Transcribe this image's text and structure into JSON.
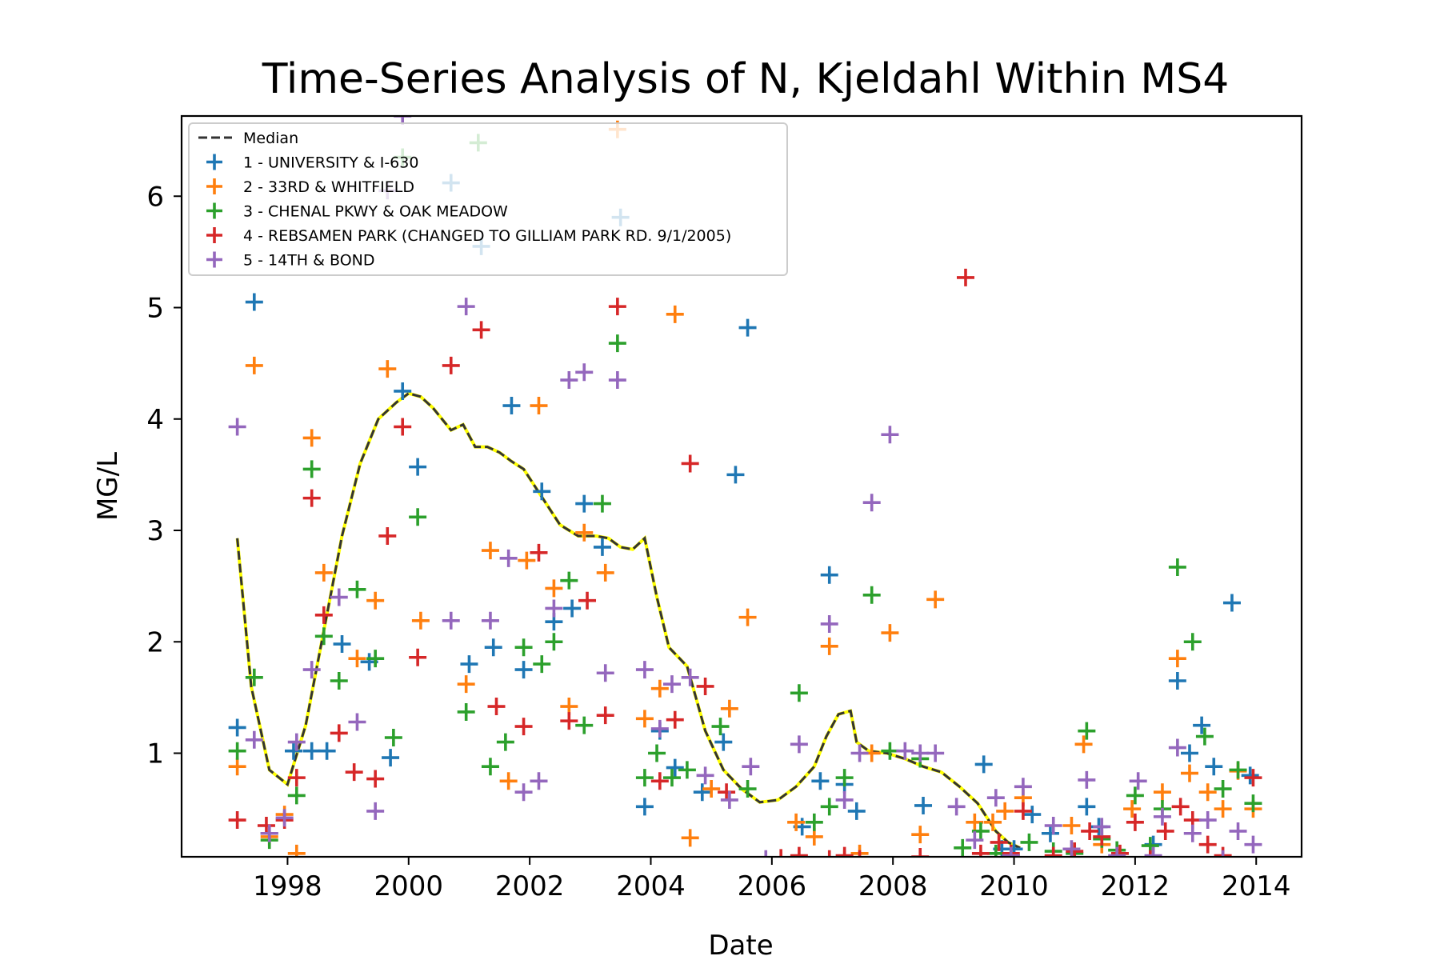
{
  "chart_data": {
    "type": "scatter",
    "title": "Time-Series Analysis of N, Kjeldahl Within MS4",
    "xlabel": "Date",
    "ylabel": "MG/L",
    "xlim": [
      1996.25,
      2014.75
    ],
    "ylim": [
      0.07,
      6.72
    ],
    "x_ticks": [
      1998,
      2000,
      2002,
      2004,
      2006,
      2008,
      2010,
      2012,
      2014
    ],
    "x_tick_labels": [
      "1998",
      "2000",
      "2002",
      "2004",
      "2006",
      "2008",
      "2010",
      "2012",
      "2014"
    ],
    "y_ticks": [
      1,
      2,
      3,
      4,
      5,
      6
    ],
    "y_tick_labels": [
      "1",
      "2",
      "3",
      "4",
      "5",
      "6"
    ],
    "grid": false,
    "legend_position": "top-left",
    "median": {
      "name": "Median",
      "color": "#333333",
      "highlight_color": "#ffff00",
      "x": [
        1997.17,
        1997.4,
        1997.7,
        1998.0,
        1998.3,
        1998.6,
        1998.9,
        1999.2,
        1999.5,
        1999.8,
        2000.0,
        2000.2,
        2000.4,
        2000.7,
        2000.9,
        2001.1,
        2001.3,
        2001.5,
        2001.7,
        2001.9,
        2002.2,
        2002.5,
        2002.8,
        2003.1,
        2003.3,
        2003.5,
        2003.7,
        2003.9,
        2004.1,
        2004.3,
        2004.6,
        2004.9,
        2005.2,
        2005.5,
        2005.8,
        2006.1,
        2006.4,
        2006.7,
        2006.9,
        2007.1,
        2007.3,
        2007.4,
        2007.6,
        2007.9,
        2008.2,
        2008.5,
        2008.8,
        2009.1,
        2009.4,
        2009.7,
        2009.9,
        2010.1
      ],
      "y": [
        2.93,
        1.6,
        0.85,
        0.72,
        1.25,
        2.1,
        2.95,
        3.6,
        4.0,
        4.15,
        4.23,
        4.2,
        4.1,
        3.9,
        3.95,
        3.75,
        3.75,
        3.7,
        3.62,
        3.55,
        3.3,
        3.05,
        2.95,
        2.95,
        2.93,
        2.85,
        2.83,
        2.93,
        2.4,
        1.95,
        1.78,
        1.2,
        0.85,
        0.68,
        0.56,
        0.58,
        0.7,
        0.88,
        1.15,
        1.35,
        1.38,
        1.1,
        1.02,
        1.0,
        0.95,
        0.88,
        0.83,
        0.7,
        0.55,
        0.3,
        0.2,
        0.15
      ]
    },
    "series": [
      {
        "name": "1 - UNIVERSITY & I-630",
        "color": "#1f77b4",
        "x": [
          1997.17,
          1997.45,
          1997.7,
          1998.1,
          1998.4,
          1998.65,
          1998.9,
          1999.35,
          1999.7,
          1999.9,
          2000.15,
          2000.7,
          2001.0,
          2001.2,
          2001.4,
          2001.7,
          2001.9,
          2002.2,
          2002.4,
          2002.7,
          2002.9,
          2003.2,
          2003.5,
          2003.9,
          2004.15,
          2004.4,
          2004.85,
          2005.2,
          2005.4,
          2005.6,
          2006.5,
          2006.8,
          2006.95,
          2007.2,
          2007.4,
          2008.5,
          2009.5,
          2009.8,
          2010.0,
          2010.3,
          2010.6,
          2011.2,
          2011.4,
          2012.3,
          2012.7,
          2012.9,
          2013.1,
          2013.3,
          2013.6,
          2013.9
        ],
        "y": [
          1.23,
          5.05,
          0.28,
          1.02,
          1.02,
          1.02,
          1.98,
          1.82,
          0.96,
          4.25,
          3.57,
          6.12,
          1.8,
          5.55,
          1.95,
          4.12,
          1.75,
          3.35,
          2.18,
          2.3,
          3.24,
          2.85,
          5.81,
          0.52,
          1.2,
          0.87,
          0.65,
          1.1,
          3.5,
          4.82,
          0.34,
          0.75,
          2.6,
          0.72,
          0.48,
          0.53,
          0.9,
          0.14,
          0.14,
          0.45,
          0.28,
          0.52,
          0.34,
          0.18,
          1.65,
          1.0,
          1.25,
          0.88,
          2.35,
          0.8
        ]
      },
      {
        "name": "2 - 33RD & WHITFIELD",
        "color": "#ff7f0e",
        "x": [
          1997.17,
          1997.45,
          1997.7,
          1997.95,
          1998.15,
          1998.4,
          1998.6,
          1999.15,
          1999.45,
          1999.65,
          2000.2,
          2000.95,
          2001.35,
          2001.65,
          2001.95,
          2002.15,
          2002.4,
          2002.65,
          2002.9,
          2003.25,
          2003.45,
          2003.9,
          2004.15,
          2004.4,
          2004.65,
          2005.0,
          2005.3,
          2005.6,
          2006.4,
          2006.7,
          2006.95,
          2007.2,
          2007.45,
          2007.65,
          2007.95,
          2008.45,
          2008.7,
          2009.35,
          2009.65,
          2009.85,
          2010.15,
          2010.95,
          2011.15,
          2011.45,
          2011.95,
          2012.45,
          2012.7,
          2012.9,
          2013.2,
          2013.45,
          2013.7,
          2013.95
        ],
        "y": [
          0.88,
          4.48,
          0.25,
          0.45,
          0.1,
          3.83,
          2.62,
          1.85,
          2.37,
          4.45,
          2.19,
          1.62,
          2.82,
          0.75,
          2.73,
          4.12,
          2.48,
          1.42,
          2.98,
          2.62,
          6.6,
          1.31,
          1.58,
          4.94,
          0.24,
          0.68,
          1.4,
          2.22,
          0.38,
          0.25,
          1.96,
          0.05,
          0.1,
          1.0,
          2.08,
          0.27,
          2.38,
          0.38,
          0.38,
          0.48,
          0.6,
          0.35,
          1.08,
          0.18,
          0.5,
          0.65,
          1.85,
          0.82,
          0.65,
          0.5,
          0.84,
          0.5
        ]
      },
      {
        "name": "3 - CHENAL PKWY & OAK MEADOW",
        "color": "#2ca02c",
        "x": [
          1997.17,
          1997.45,
          1997.7,
          1998.15,
          1998.4,
          1998.6,
          1998.85,
          1999.15,
          1999.45,
          1999.75,
          1999.9,
          2000.15,
          2000.95,
          2001.15,
          2001.35,
          2001.6,
          2001.9,
          2002.2,
          2002.4,
          2002.65,
          2002.9,
          2003.2,
          2003.45,
          2003.9,
          2004.1,
          2004.35,
          2004.6,
          2005.15,
          2005.6,
          2006.45,
          2006.7,
          2006.95,
          2007.2,
          2007.65,
          2007.95,
          2008.45,
          2009.15,
          2009.45,
          2009.7,
          2009.95,
          2010.25,
          2010.65,
          2011.0,
          2011.2,
          2011.45,
          2011.7,
          2012.0,
          2012.25,
          2012.45,
          2012.7,
          2012.95,
          2013.15,
          2013.45,
          2013.7,
          2013.95
        ],
        "y": [
          1.02,
          1.68,
          0.22,
          0.62,
          3.55,
          2.05,
          1.65,
          2.47,
          1.85,
          1.14,
          6.35,
          3.12,
          1.37,
          6.48,
          0.88,
          1.1,
          1.95,
          1.8,
          2.0,
          2.55,
          1.25,
          3.24,
          4.68,
          0.78,
          1.0,
          0.78,
          0.85,
          1.24,
          0.68,
          1.54,
          0.38,
          0.52,
          0.78,
          2.42,
          1.02,
          0.95,
          0.15,
          0.3,
          0.1,
          0.08,
          0.2,
          0.12,
          0.1,
          1.2,
          0.23,
          0.13,
          0.62,
          0.17,
          0.5,
          2.67,
          2.0,
          1.15,
          0.68,
          0.85,
          0.55
        ]
      },
      {
        "name": "4 - REBSAMEN PARK (CHANGED TO GILLIAM PARK RD. 9/1/2005)",
        "color": "#d62728",
        "x": [
          1997.17,
          1997.65,
          1997.95,
          1998.15,
          1998.4,
          1998.6,
          1998.85,
          1999.1,
          1999.45,
          1999.65,
          1999.9,
          2000.15,
          2000.7,
          2001.2,
          2001.45,
          2001.9,
          2002.15,
          2002.65,
          2002.95,
          2003.25,
          2003.45,
          2004.15,
          2004.4,
          2004.65,
          2004.9,
          2005.25,
          2006.15,
          2006.45,
          2006.95,
          2007.2,
          2007.45,
          2008.45,
          2009.2,
          2009.45,
          2009.75,
          2009.95,
          2010.15,
          2010.65,
          2011.0,
          2011.25,
          2011.45,
          2011.75,
          2012.0,
          2012.25,
          2012.5,
          2012.75,
          2012.95,
          2013.2,
          2013.45,
          2013.95
        ],
        "y": [
          0.4,
          0.35,
          0.4,
          0.78,
          3.29,
          2.24,
          1.18,
          0.83,
          0.77,
          2.95,
          3.93,
          1.86,
          4.48,
          4.8,
          1.42,
          1.24,
          2.8,
          1.29,
          2.37,
          1.34,
          5.01,
          0.75,
          1.3,
          3.6,
          1.6,
          0.65,
          0.06,
          0.08,
          0.05,
          0.08,
          0.05,
          0.07,
          5.27,
          0.1,
          0.2,
          0.1,
          0.48,
          0.08,
          0.12,
          0.3,
          0.25,
          0.1,
          0.38,
          0.05,
          0.3,
          0.52,
          0.4,
          0.18,
          0.08,
          0.78
        ]
      },
      {
        "name": "5 - 14TH & BOND",
        "color": "#9467bd",
        "x": [
          1997.17,
          1997.45,
          1997.7,
          1997.95,
          1998.15,
          1998.4,
          1998.85,
          1999.15,
          1999.45,
          1999.65,
          1999.9,
          2000.7,
          2000.95,
          2001.35,
          2001.65,
          2001.9,
          2002.15,
          2002.4,
          2002.65,
          2002.9,
          2003.25,
          2003.45,
          2003.9,
          2004.15,
          2004.35,
          2004.65,
          2004.9,
          2005.3,
          2005.65,
          2005.9,
          2006.45,
          2006.95,
          2007.2,
          2007.45,
          2007.65,
          2007.95,
          2008.2,
          2008.45,
          2008.7,
          2009.05,
          2009.35,
          2009.7,
          2009.95,
          2010.15,
          2010.65,
          2010.95,
          2011.2,
          2011.45,
          2011.7,
          2012.05,
          2012.3,
          2012.45,
          2012.7,
          2012.95,
          2013.2,
          2013.45,
          2013.7,
          2013.95
        ],
        "y": [
          3.93,
          1.12,
          0.28,
          0.42,
          1.1,
          1.75,
          2.4,
          1.28,
          0.48,
          6.05,
          6.72,
          2.19,
          5.01,
          2.19,
          2.75,
          0.65,
          0.75,
          2.3,
          4.35,
          4.42,
          1.72,
          4.35,
          1.75,
          1.22,
          1.62,
          1.68,
          0.8,
          0.58,
          0.88,
          0.05,
          1.08,
          2.16,
          0.58,
          1.0,
          3.25,
          3.86,
          1.02,
          1.0,
          1.0,
          0.52,
          0.22,
          0.6,
          0.08,
          0.7,
          0.35,
          0.14,
          0.76,
          0.34,
          0.08,
          0.75,
          0.08,
          0.43,
          1.05,
          0.28,
          0.4,
          0.05,
          0.3,
          0.18
        ]
      }
    ]
  }
}
